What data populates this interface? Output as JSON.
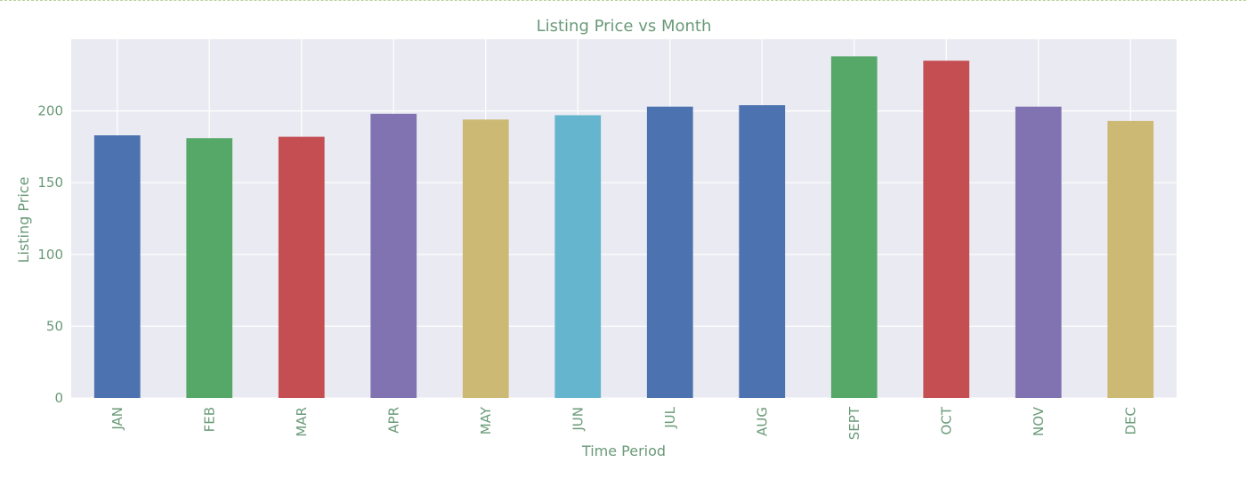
{
  "chart_data": {
    "type": "bar",
    "title": "Listing Price vs Month",
    "xlabel": "Time Period",
    "ylabel": "Listing Price",
    "categories": [
      "JAN",
      "FEB",
      "MAR",
      "APR",
      "MAY",
      "JUN",
      "JUL",
      "AUG",
      "SEPT",
      "OCT",
      "NOV",
      "DEC"
    ],
    "values": [
      183,
      181,
      182,
      198,
      194,
      197,
      203,
      204,
      238,
      235,
      203,
      193
    ],
    "ylim": [
      0,
      250
    ],
    "yticks": [
      0,
      50,
      100,
      150,
      200
    ],
    "grid": true,
    "colors": [
      "#4c72b0",
      "#55a868",
      "#c44e52",
      "#8172b2",
      "#ccb974",
      "#64b5cd",
      "#4c72b0",
      "#4c72b0",
      "#55a868",
      "#c44e52",
      "#8172b2",
      "#ccb974"
    ],
    "background": "#eaeaf2",
    "text_color": "#6a9a78"
  }
}
